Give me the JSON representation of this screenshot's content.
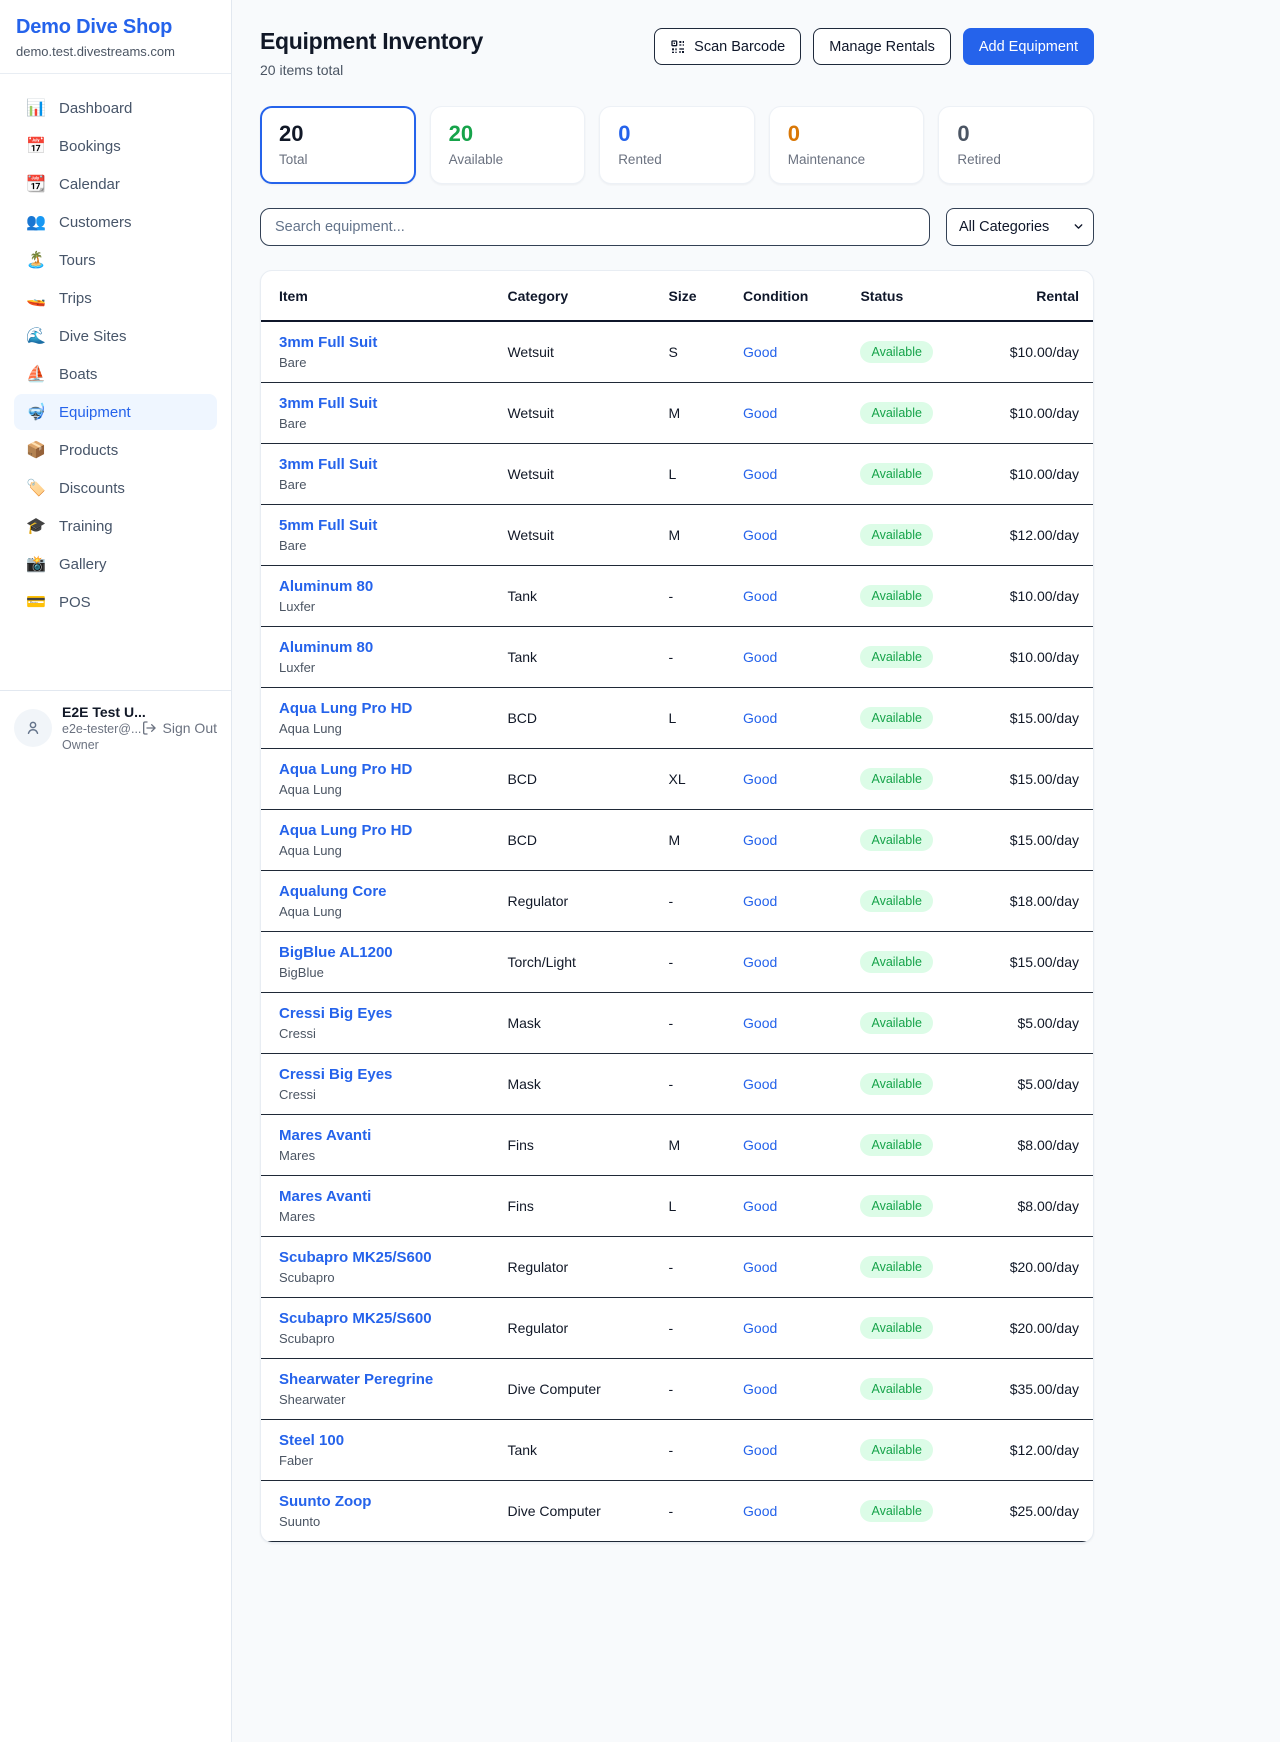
{
  "colors": {
    "accent_blue": "#2563eb",
    "status_green": "#16a34a",
    "status_green_bg": "#dcfce7",
    "maintenance_orange": "#d97706",
    "dark_text": "#111827",
    "muted_text": "#6b7280"
  },
  "sidebar": {
    "brand": {
      "name": "Demo Dive Shop",
      "domain": "demo.test.divestreams.com"
    },
    "items": [
      {
        "id": "dashboard",
        "label": "Dashboard",
        "icon": "bar-chart-icon",
        "glyph": "📊",
        "active": false
      },
      {
        "id": "bookings",
        "label": "Bookings",
        "icon": "calendar-date-icon",
        "glyph": "📅",
        "active": false
      },
      {
        "id": "calendar",
        "label": "Calendar",
        "icon": "tear-off-calendar-icon",
        "glyph": "📆",
        "active": false
      },
      {
        "id": "customers",
        "label": "Customers",
        "icon": "people-icon",
        "glyph": "👥",
        "active": false
      },
      {
        "id": "tours",
        "label": "Tours",
        "icon": "island-icon",
        "glyph": "🏝️",
        "active": false
      },
      {
        "id": "trips",
        "label": "Trips",
        "icon": "speedboat-icon",
        "glyph": "🚤",
        "active": false
      },
      {
        "id": "dive-sites",
        "label": "Dive Sites",
        "icon": "wave-icon",
        "glyph": "🌊",
        "active": false
      },
      {
        "id": "boats",
        "label": "Boats",
        "icon": "sailboat-icon",
        "glyph": "⛵",
        "active": false
      },
      {
        "id": "equipment",
        "label": "Equipment",
        "icon": "diving-mask-icon",
        "glyph": "🤿",
        "active": true
      },
      {
        "id": "products",
        "label": "Products",
        "icon": "package-icon",
        "glyph": "📦",
        "active": false
      },
      {
        "id": "discounts",
        "label": "Discounts",
        "icon": "tag-icon",
        "glyph": "🏷️",
        "active": false
      },
      {
        "id": "training",
        "label": "Training",
        "icon": "graduation-cap-icon",
        "glyph": "🎓",
        "active": false
      },
      {
        "id": "gallery",
        "label": "Gallery",
        "icon": "camera-icon",
        "glyph": "📸",
        "active": false
      },
      {
        "id": "pos",
        "label": "POS",
        "icon": "credit-card-icon",
        "glyph": "💳",
        "active": false
      }
    ],
    "user": {
      "name": "E2E Test U...",
      "email": "e2e-tester@...",
      "role": "Owner",
      "sign_out_label": "Sign Out"
    }
  },
  "header": {
    "title": "Equipment Inventory",
    "subtitle": "20 items total",
    "buttons": {
      "scan_barcode": "Scan Barcode",
      "manage_rentals": "Manage Rentals",
      "add_equipment": "Add Equipment"
    }
  },
  "stats": [
    {
      "value": "20",
      "label": "Total",
      "color": "#111827",
      "selected": true
    },
    {
      "value": "20",
      "label": "Available",
      "color": "#16a34a",
      "selected": false
    },
    {
      "value": "0",
      "label": "Rented",
      "color": "#2563eb",
      "selected": false
    },
    {
      "value": "0",
      "label": "Maintenance",
      "color": "#d97706",
      "selected": false
    },
    {
      "value": "0",
      "label": "Retired",
      "color": "#4b5563",
      "selected": false
    }
  ],
  "filters": {
    "search_placeholder": "Search equipment...",
    "category_selected": "All Categories"
  },
  "table": {
    "columns": [
      "Item",
      "Category",
      "Size",
      "Condition",
      "Status",
      "Rental"
    ],
    "rows": [
      {
        "item": "3mm Full Suit",
        "brand": "Bare",
        "category": "Wetsuit",
        "size": "S",
        "condition": "Good",
        "status": "Available",
        "rental": "$10.00/day"
      },
      {
        "item": "3mm Full Suit",
        "brand": "Bare",
        "category": "Wetsuit",
        "size": "M",
        "condition": "Good",
        "status": "Available",
        "rental": "$10.00/day"
      },
      {
        "item": "3mm Full Suit",
        "brand": "Bare",
        "category": "Wetsuit",
        "size": "L",
        "condition": "Good",
        "status": "Available",
        "rental": "$10.00/day"
      },
      {
        "item": "5mm Full Suit",
        "brand": "Bare",
        "category": "Wetsuit",
        "size": "M",
        "condition": "Good",
        "status": "Available",
        "rental": "$12.00/day"
      },
      {
        "item": "Aluminum 80",
        "brand": "Luxfer",
        "category": "Tank",
        "size": "-",
        "condition": "Good",
        "status": "Available",
        "rental": "$10.00/day"
      },
      {
        "item": "Aluminum 80",
        "brand": "Luxfer",
        "category": "Tank",
        "size": "-",
        "condition": "Good",
        "status": "Available",
        "rental": "$10.00/day"
      },
      {
        "item": "Aqua Lung Pro HD",
        "brand": "Aqua Lung",
        "category": "BCD",
        "size": "L",
        "condition": "Good",
        "status": "Available",
        "rental": "$15.00/day"
      },
      {
        "item": "Aqua Lung Pro HD",
        "brand": "Aqua Lung",
        "category": "BCD",
        "size": "XL",
        "condition": "Good",
        "status": "Available",
        "rental": "$15.00/day"
      },
      {
        "item": "Aqua Lung Pro HD",
        "brand": "Aqua Lung",
        "category": "BCD",
        "size": "M",
        "condition": "Good",
        "status": "Available",
        "rental": "$15.00/day"
      },
      {
        "item": "Aqualung Core",
        "brand": "Aqua Lung",
        "category": "Regulator",
        "size": "-",
        "condition": "Good",
        "status": "Available",
        "rental": "$18.00/day"
      },
      {
        "item": "BigBlue AL1200",
        "brand": "BigBlue",
        "category": "Torch/Light",
        "size": "-",
        "condition": "Good",
        "status": "Available",
        "rental": "$15.00/day"
      },
      {
        "item": "Cressi Big Eyes",
        "brand": "Cressi",
        "category": "Mask",
        "size": "-",
        "condition": "Good",
        "status": "Available",
        "rental": "$5.00/day"
      },
      {
        "item": "Cressi Big Eyes",
        "brand": "Cressi",
        "category": "Mask",
        "size": "-",
        "condition": "Good",
        "status": "Available",
        "rental": "$5.00/day"
      },
      {
        "item": "Mares Avanti",
        "brand": "Mares",
        "category": "Fins",
        "size": "M",
        "condition": "Good",
        "status": "Available",
        "rental": "$8.00/day"
      },
      {
        "item": "Mares Avanti",
        "brand": "Mares",
        "category": "Fins",
        "size": "L",
        "condition": "Good",
        "status": "Available",
        "rental": "$8.00/day"
      },
      {
        "item": "Scubapro MK25/S600",
        "brand": "Scubapro",
        "category": "Regulator",
        "size": "-",
        "condition": "Good",
        "status": "Available",
        "rental": "$20.00/day"
      },
      {
        "item": "Scubapro MK25/S600",
        "brand": "Scubapro",
        "category": "Regulator",
        "size": "-",
        "condition": "Good",
        "status": "Available",
        "rental": "$20.00/day"
      },
      {
        "item": "Shearwater Peregrine",
        "brand": "Shearwater",
        "category": "Dive Computer",
        "size": "-",
        "condition": "Good",
        "status": "Available",
        "rental": "$35.00/day"
      },
      {
        "item": "Steel 100",
        "brand": "Faber",
        "category": "Tank",
        "size": "-",
        "condition": "Good",
        "status": "Available",
        "rental": "$12.00/day"
      },
      {
        "item": "Suunto Zoop",
        "brand": "Suunto",
        "category": "Dive Computer",
        "size": "-",
        "condition": "Good",
        "status": "Available",
        "rental": "$25.00/day"
      }
    ]
  }
}
